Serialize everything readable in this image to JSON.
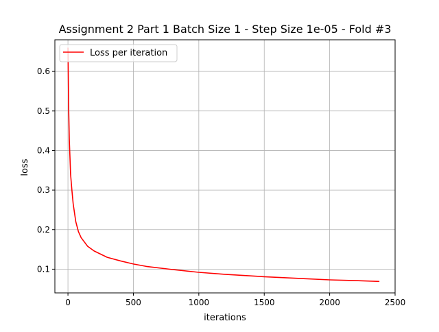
{
  "chart_data": {
    "type": "line",
    "title": "Assignment 2 Part 1 Batch Size 1 - Step Size 1e-05 - Fold #3",
    "xlabel": "iterations",
    "ylabel": "loss",
    "xlim": [
      -100,
      2500
    ],
    "ylim": [
      0.04,
      0.68
    ],
    "xticks": [
      0,
      500,
      1000,
      1500,
      2000,
      2500
    ],
    "yticks": [
      0.1,
      0.2,
      0.3,
      0.4,
      0.5,
      0.6
    ],
    "xtick_labels": [
      "0",
      "500",
      "1000",
      "1500",
      "2000",
      "2500"
    ],
    "ytick_labels": [
      "0.1",
      "0.2",
      "0.3",
      "0.4",
      "0.5",
      "0.6"
    ],
    "grid": true,
    "legend_location": "upper-left",
    "series": [
      {
        "name": "Loss per iteration",
        "color": "#ff0000",
        "x": [
          0,
          5,
          10,
          20,
          30,
          40,
          60,
          80,
          100,
          150,
          200,
          300,
          400,
          500,
          600,
          800,
          1000,
          1200,
          1500,
          1800,
          2000,
          2200,
          2380
        ],
        "y": [
          0.66,
          0.52,
          0.43,
          0.34,
          0.3,
          0.265,
          0.22,
          0.195,
          0.18,
          0.158,
          0.146,
          0.13,
          0.121,
          0.113,
          0.107,
          0.099,
          0.092,
          0.087,
          0.081,
          0.076,
          0.073,
          0.071,
          0.069
        ]
      }
    ]
  }
}
